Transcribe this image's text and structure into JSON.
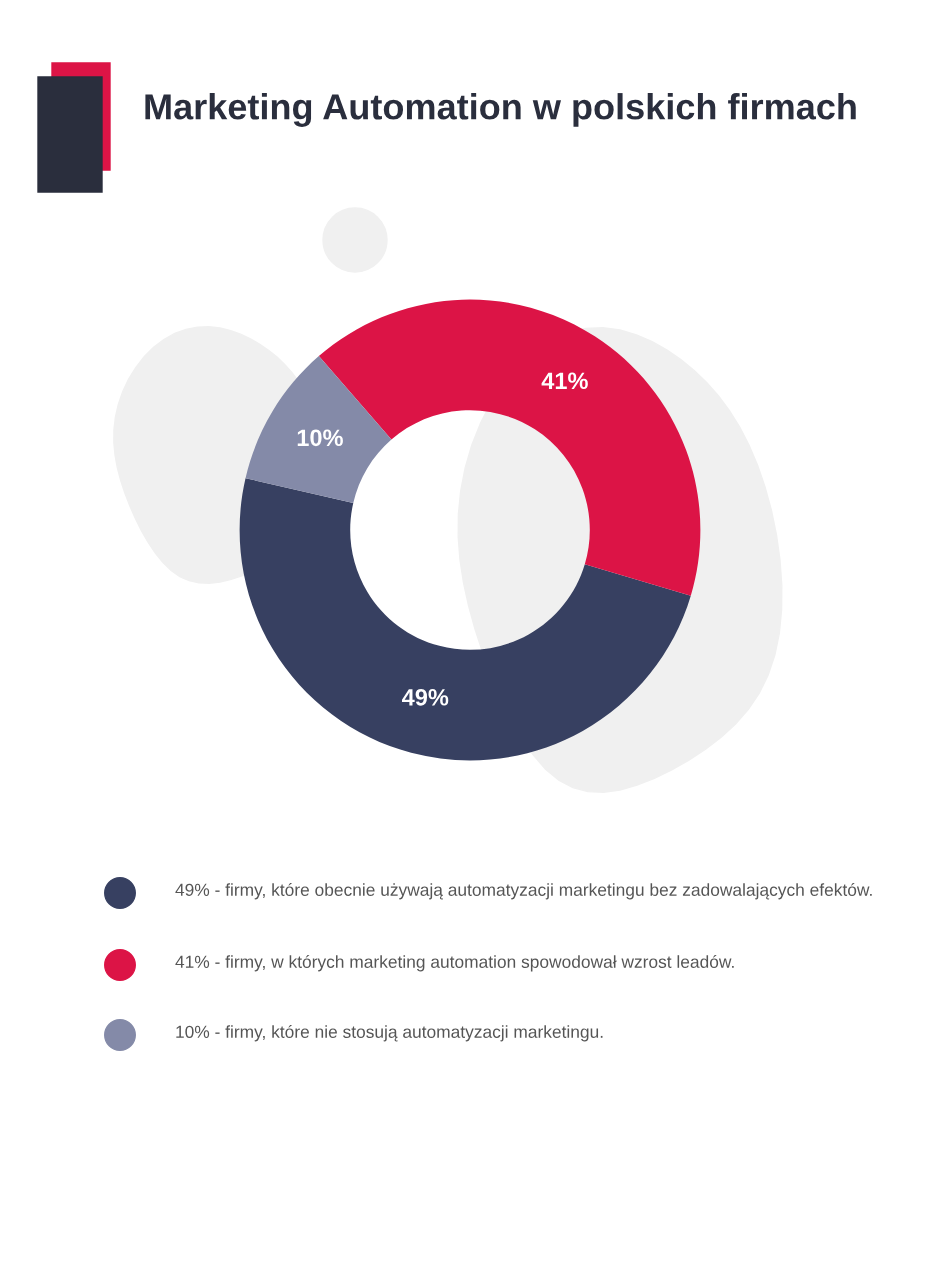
{
  "chart_data": {
    "type": "donut",
    "title": "Marketing Automation w polskich firmach",
    "categories": [
      "49% - firmy, które obecnie używają automatyzacji marketingu bez zadowalających efektów.",
      "41% - firmy, w których marketing automation spowodował wzrost leadów.",
      "10% - firmy, które nie stosują automatyzacji marketingu."
    ],
    "values": [
      49,
      41,
      10
    ],
    "colors": [
      "#374061",
      "#dc1446",
      "#848aa8"
    ],
    "value_labels": [
      "49%",
      "41%",
      "10%"
    ],
    "legend": "bottom"
  }
}
